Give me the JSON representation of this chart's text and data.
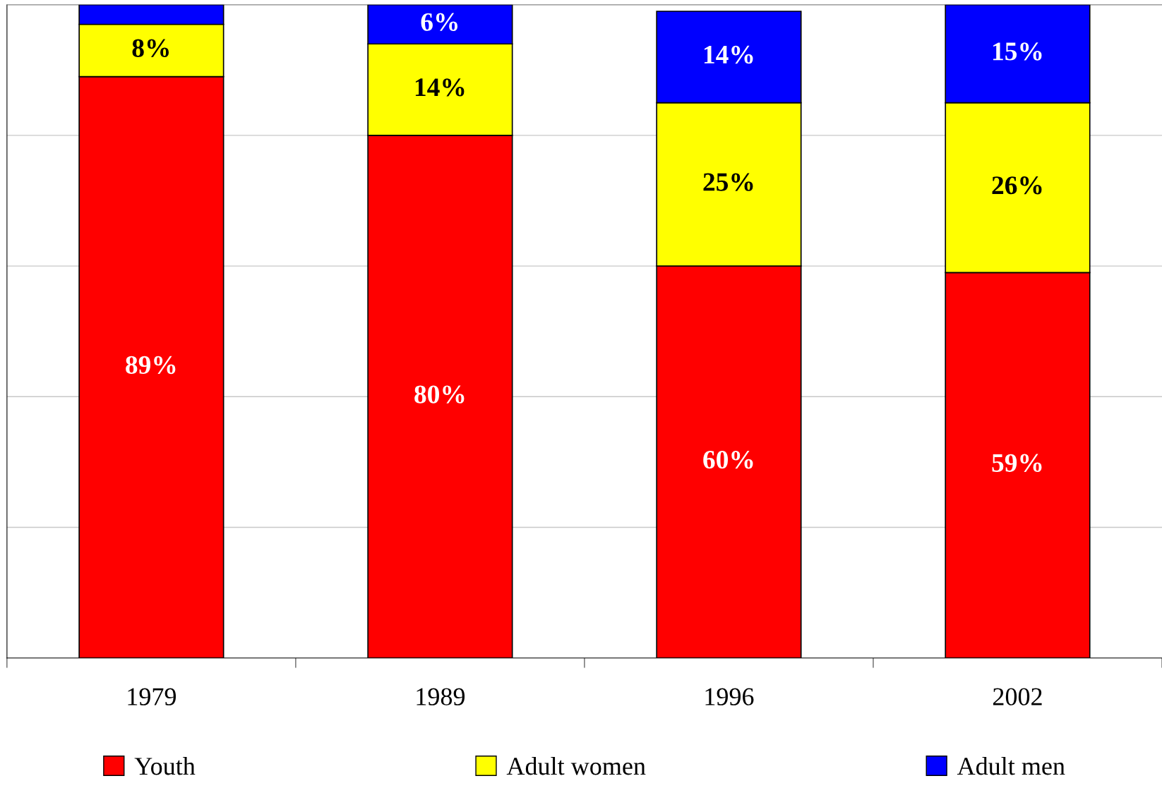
{
  "chart_data": {
    "type": "bar",
    "stacked": true,
    "categories": [
      "1979",
      "1989",
      "1996",
      "2002"
    ],
    "series": [
      {
        "name": "Youth",
        "color": "#ff0000",
        "values": [
          89,
          80,
          60,
          59
        ],
        "value_labels": [
          "89%",
          "80%",
          "60%",
          "59%"
        ]
      },
      {
        "name": "Adult women",
        "color": "#ffff00",
        "values": [
          8,
          14,
          25,
          26
        ],
        "value_labels": [
          "8%",
          "14%",
          "25%",
          "26%"
        ]
      },
      {
        "name": "Adult men",
        "color": "#0000ff",
        "values": [
          3,
          6,
          14,
          15
        ],
        "value_labels": [
          null,
          "6%",
          "14%",
          "15%"
        ]
      }
    ],
    "ylim": [
      0,
      100
    ],
    "yticks": [
      {
        "value": 0,
        "label": null
      },
      {
        "value": 20,
        "label": null
      },
      {
        "value": 40,
        "label": null
      },
      {
        "value": 60,
        "label": null
      },
      {
        "value": 80,
        "label": null
      },
      {
        "value": 100,
        "label": null
      }
    ],
    "grid": "y",
    "legend": "bottom"
  }
}
